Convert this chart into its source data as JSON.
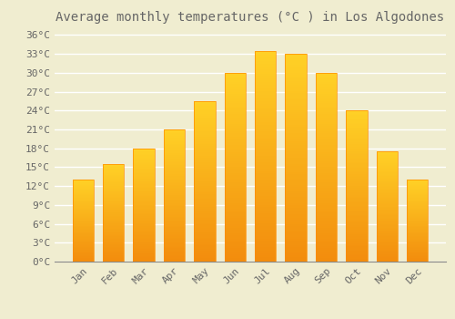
{
  "title": "Average monthly temperatures (°C ) in Los Algodones",
  "months": [
    "Jan",
    "Feb",
    "Mar",
    "Apr",
    "May",
    "Jun",
    "Jul",
    "Aug",
    "Sep",
    "Oct",
    "Nov",
    "Dec"
  ],
  "values": [
    13,
    15.5,
    18,
    21,
    25.5,
    30,
    33.5,
    33,
    30,
    24,
    17.5,
    13
  ],
  "bar_color": "#FFAA00",
  "bar_edge_color": "#FF8C00",
  "background_color": "#F0EDD0",
  "grid_color": "#FFFFFF",
  "text_color": "#666666",
  "ylim": [
    0,
    37
  ],
  "yticks": [
    0,
    3,
    6,
    9,
    12,
    15,
    18,
    21,
    24,
    27,
    30,
    33,
    36
  ],
  "ytick_labels": [
    "0°C",
    "3°C",
    "6°C",
    "9°C",
    "12°C",
    "15°C",
    "18°C",
    "21°C",
    "24°C",
    "27°C",
    "30°C",
    "33°C",
    "36°C"
  ],
  "title_fontsize": 10,
  "tick_fontsize": 8,
  "font_family": "monospace"
}
